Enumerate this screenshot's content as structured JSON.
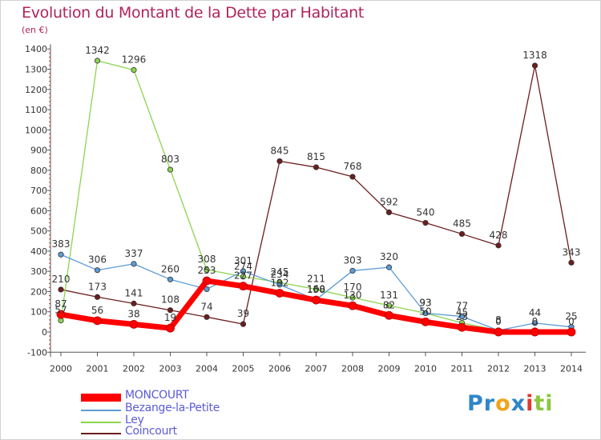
{
  "title": "Evolution du Montant de la Dette par Habitant",
  "unit": "(en €)",
  "brand": {
    "letters": [
      {
        "ch": "P",
        "color": "#2e86c8"
      },
      {
        "ch": "r",
        "color": "#2e86c8"
      },
      {
        "ch": "o",
        "color": "#f3a21b"
      },
      {
        "ch": "x",
        "color": "#2e86c8"
      },
      {
        "ch": "i",
        "color": "#e0382f"
      },
      {
        "ch": "t",
        "color": "#8cc63f"
      },
      {
        "ch": "i",
        "color": "#8cc63f"
      }
    ]
  },
  "chart_data": {
    "type": "line",
    "x": [
      "2000",
      "2001",
      "2002",
      "2003",
      "2004",
      "2005",
      "2006",
      "2007",
      "2008",
      "2009",
      "2010",
      "2011",
      "2012",
      "2013",
      "2014"
    ],
    "y_ticks": [
      "-100",
      "0",
      "100",
      "200",
      "300",
      "400",
      "500",
      "600",
      "700",
      "800",
      "900",
      "1000",
      "1100",
      "1200",
      "1300",
      "1400"
    ],
    "ylim": [
      -100,
      1400
    ],
    "grid": false,
    "legend_position": "bottom-left",
    "series": [
      {
        "name": "MONCOURT",
        "color": "#ff0000",
        "values": [
          87,
          56,
          38,
          19,
          253,
          227,
          192,
          158,
          130,
          82,
          50,
          23,
          0,
          0,
          0
        ],
        "labels": [
          "87",
          "56",
          "38",
          "19",
          "253",
          "227",
          "192",
          "158",
          "130",
          "82",
          "50",
          "23",
          "0",
          "0",
          "0"
        ]
      },
      {
        "name": "Bezange-la-Petite",
        "color": "#5b9bd5",
        "values": [
          383,
          306,
          337,
          260,
          212,
          301,
          234,
          160,
          303,
          320,
          93,
          77,
          8,
          44,
          25
        ],
        "labels": [
          "383",
          "306",
          "337",
          "260",
          "",
          "301",
          "234",
          "160",
          "303",
          "320",
          "93",
          "77",
          "8",
          "44",
          "25"
        ]
      },
      {
        "name": "Ley",
        "color": "#8cd450",
        "values": [
          57,
          1342,
          1296,
          803,
          308,
          274,
          245,
          211,
          170,
          131,
          93,
          45,
          8,
          8,
          8
        ],
        "labels": [
          "57",
          "1342",
          "1296",
          "803",
          "308",
          "274",
          "245",
          "211",
          "170",
          "131",
          "93",
          "45",
          "",
          "",
          ""
        ]
      },
      {
        "name": "Coincourt",
        "color": "#6b1e1e",
        "values": [
          210,
          173,
          141,
          108,
          74,
          39,
          845,
          815,
          768,
          592,
          540,
          485,
          428,
          1318,
          343
        ],
        "labels": [
          "210",
          "173",
          "141",
          "108",
          "74",
          "39",
          "845",
          "815",
          "768",
          "592",
          "540",
          "485",
          "428",
          "1318",
          "343"
        ]
      }
    ]
  }
}
